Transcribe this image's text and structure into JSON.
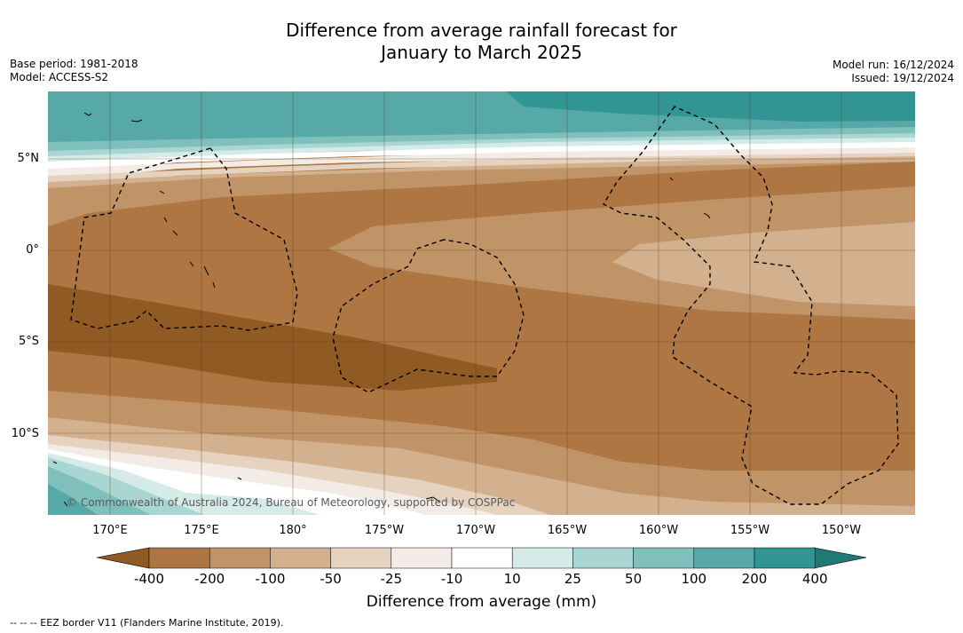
{
  "title_line1": "Difference from average rainfall forecast for",
  "title_line2": "January to March 2025",
  "meta_left": {
    "base_period": "Base period: 1981-2018",
    "model": "Model: ACCESS-S2"
  },
  "meta_right": {
    "model_run": "Model run: 16/12/2024",
    "issued": "Issued: 19/12/2024"
  },
  "lat_labels": [
    "5°N",
    "0°",
    "5°S",
    "10°S"
  ],
  "lon_labels": [
    "170°E",
    "175°E",
    "180°",
    "175°W",
    "170°W",
    "165°W",
    "160°W",
    "155°W",
    "150°W"
  ],
  "copyright": "© Commonwealth of Australia 2024, Bureau of Meteorology, supported by COSPPac",
  "colorbar": {
    "labels": [
      "-400",
      "-200",
      "-100",
      "-50",
      "-25",
      "-10",
      "10",
      "25",
      "50",
      "100",
      "200",
      "400"
    ],
    "title": "Difference from average (mm)",
    "colors": [
      "#8f5a23",
      "#ad7642",
      "#c19468",
      "#d3b08e",
      "#e5d2bf",
      "#f3ece6",
      "#ffffff",
      "#d5ebe7",
      "#a9d6d2",
      "#7fc0bc",
      "#56a9a6",
      "#319693",
      "#1f7a77"
    ]
  },
  "legend_note": "--  --  -- EEZ border V11 (Flanders Marine Institute, 2019)."
}
